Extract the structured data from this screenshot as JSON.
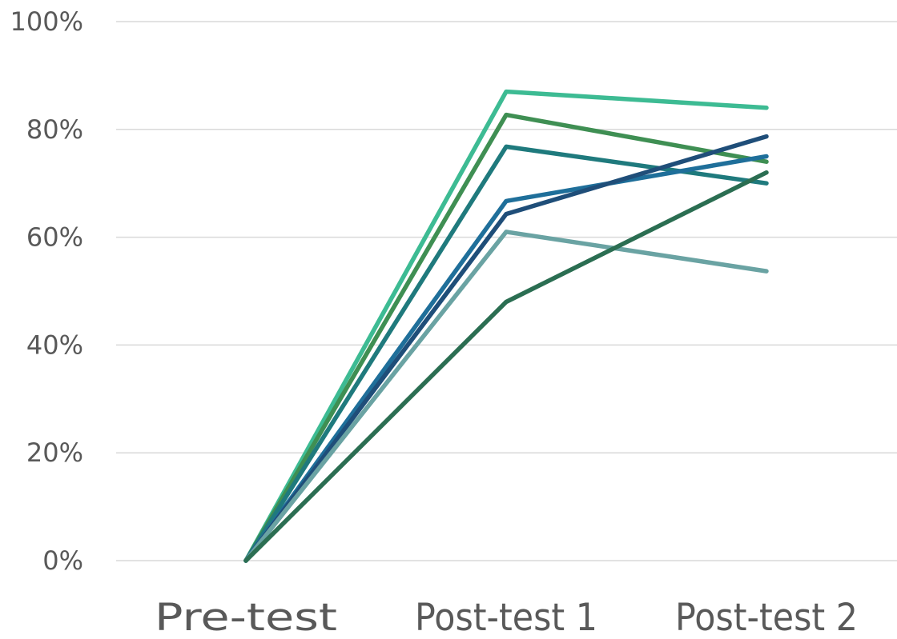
{
  "chart_data": {
    "type": "line",
    "title": "",
    "xlabel": "",
    "ylabel": "",
    "categories": [
      "Pre-test",
      "Post-test 1",
      "Post-test 2"
    ],
    "ylim": [
      0,
      1
    ],
    "yticks": [
      0,
      0.2,
      0.4,
      0.6,
      0.8,
      1.0
    ],
    "ytick_labels": [
      "0%",
      "20%",
      "40%",
      "60%",
      "80%",
      "100%"
    ],
    "grid": true,
    "legend": "none",
    "series": [
      {
        "values": [
          0,
          0.87,
          0.84
        ],
        "color": "#3dbb93"
      },
      {
        "values": [
          0,
          0.827,
          0.74
        ],
        "color": "#3f8f53"
      },
      {
        "values": [
          0,
          0.768,
          0.7
        ],
        "color": "#1f7a7d"
      },
      {
        "values": [
          0,
          0.667,
          0.75
        ],
        "color": "#1f6f9a"
      },
      {
        "values": [
          0,
          0.643,
          0.787
        ],
        "color": "#1f4e79"
      },
      {
        "values": [
          0,
          0.61,
          0.537
        ],
        "color": "#6aa3a3"
      },
      {
        "values": [
          0,
          0.48,
          0.72
        ],
        "color": "#2b6e52"
      }
    ]
  }
}
